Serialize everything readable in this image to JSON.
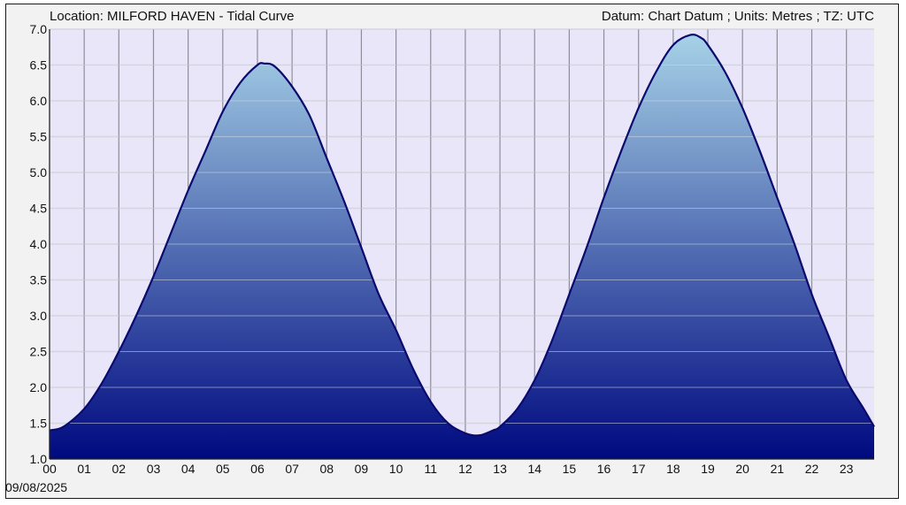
{
  "header": {
    "location": "Location: MILFORD HAVEN - Tidal Curve",
    "info": "Datum: Chart Datum ; Units: Metres ; TZ: UTC"
  },
  "date_label": "09/08/2025",
  "colors": {
    "plot_background": "#e8e6f8",
    "grid_vertical": "#8e8e9a",
    "grid_horizontal": "#d6d6de",
    "curve_line": "#0a0a6e",
    "fill_top": "#a8d4e8",
    "fill_bottom": "#000a80"
  },
  "chart_data": {
    "type": "area",
    "title": "",
    "xlabel": "",
    "ylabel": "",
    "xlim": [
      0,
      23.8
    ],
    "ylim": [
      1.0,
      7.0
    ],
    "yticks": [
      "1.0",
      "1.5",
      "2.0",
      "2.5",
      "3.0",
      "3.5",
      "4.0",
      "4.5",
      "5.0",
      "5.5",
      "6.0",
      "6.5",
      "7.0"
    ],
    "xticks": [
      "00",
      "01",
      "02",
      "03",
      "04",
      "05",
      "06",
      "07",
      "08",
      "09",
      "10",
      "11",
      "12",
      "13",
      "14",
      "15",
      "16",
      "17",
      "18",
      "19",
      "20",
      "21",
      "22",
      "23"
    ],
    "grid": true,
    "series": [
      {
        "x": [
          0.0,
          0.4,
          1.0,
          1.5,
          2.0,
          2.5,
          3.0,
          3.5,
          4.0,
          4.5,
          5.0,
          5.5,
          6.0,
          6.2,
          6.5,
          7.0,
          7.5,
          8.0,
          8.5,
          9.0,
          9.5,
          10.0,
          10.5,
          11.0,
          11.5,
          12.0,
          12.4,
          12.8,
          13.0,
          13.5,
          14.0,
          14.5,
          15.0,
          15.5,
          16.0,
          16.5,
          17.0,
          17.5,
          18.0,
          18.5,
          18.8,
          19.0,
          19.5,
          20.0,
          20.5,
          21.0,
          21.5,
          22.0,
          22.5,
          23.0,
          23.5,
          23.8
        ],
        "y": [
          1.4,
          1.45,
          1.7,
          2.05,
          2.5,
          3.0,
          3.55,
          4.15,
          4.75,
          5.3,
          5.85,
          6.25,
          6.5,
          6.52,
          6.48,
          6.2,
          5.8,
          5.2,
          4.6,
          3.95,
          3.3,
          2.8,
          2.25,
          1.8,
          1.5,
          1.36,
          1.33,
          1.4,
          1.45,
          1.7,
          2.1,
          2.65,
          3.3,
          3.95,
          4.65,
          5.3,
          5.9,
          6.4,
          6.78,
          6.92,
          6.88,
          6.78,
          6.4,
          5.9,
          5.3,
          4.65,
          4.0,
          3.3,
          2.7,
          2.1,
          1.7,
          1.45
        ]
      }
    ]
  }
}
